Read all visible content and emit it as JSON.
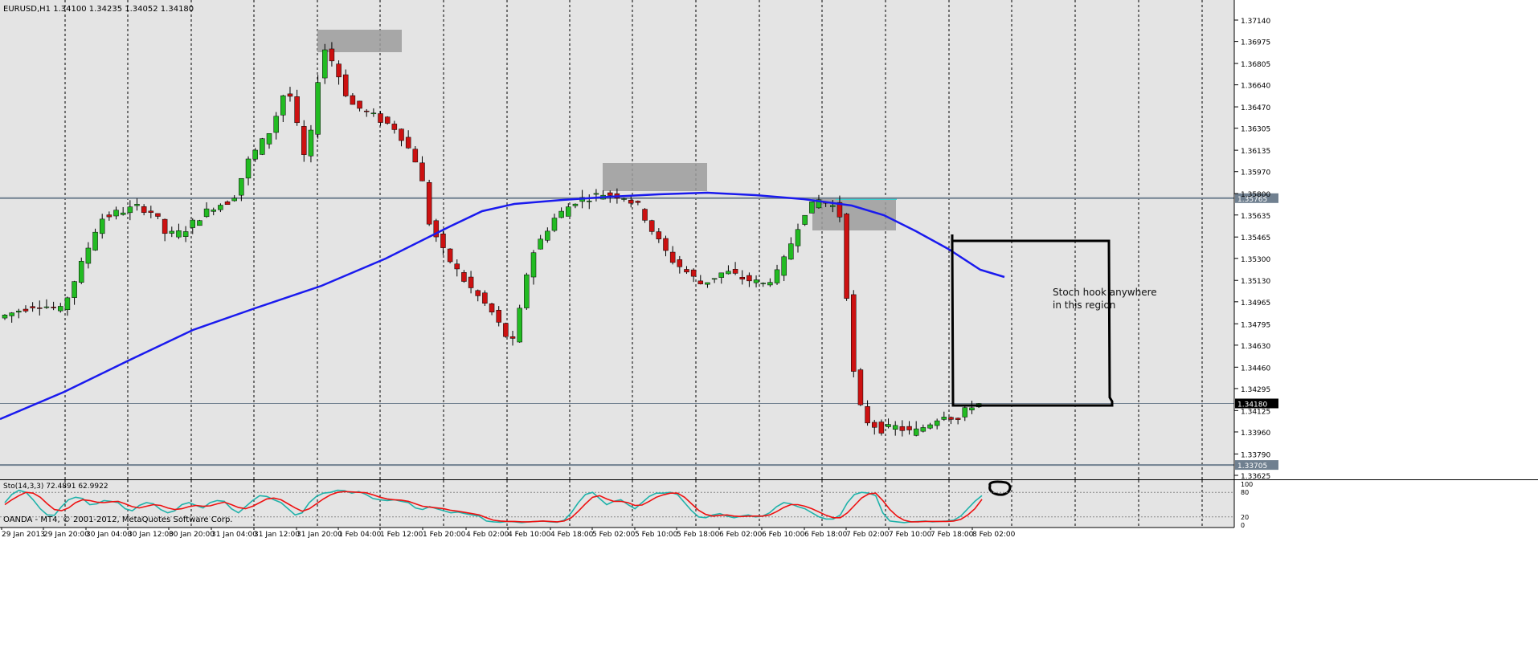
{
  "header": {
    "symbol": "EURUSD,H1",
    "ohlc": "1.34100 1.34235 1.34052 1.34180"
  },
  "footer": {
    "copyright": "OANDA - MT4, © 2001-2012, MetaQuotes Software Corp."
  },
  "annotation": {
    "line1": "Stoch hook anywhere",
    "line2": "in this region"
  },
  "colors": {
    "background": "#e4e4e4",
    "bull": "#22bb22",
    "bear": "#cc1111",
    "ma": "#1a1aee",
    "stoch_main": "#20b2aa",
    "stoch_signal": "#ee1111",
    "zone": "#9c9c9c",
    "hline": "#708090"
  },
  "chart_data": {
    "type": "candlestick",
    "price_axis": {
      "range": [
        1.33625,
        1.3714
      ],
      "tick_labels": [
        "1.37140",
        "1.36975",
        "1.36805",
        "1.36640",
        "1.36470",
        "1.36305",
        "1.36135",
        "1.35970",
        "1.35800",
        "1.35635",
        "1.35465",
        "1.35300",
        "1.35130",
        "1.34965",
        "1.34795",
        "1.34630",
        "1.34460",
        "1.34295",
        "1.34125",
        "1.33960",
        "1.33790",
        "1.33625"
      ],
      "markers": [
        {
          "label": "1.35765",
          "value": 1.35765
        },
        {
          "label": "1.34180",
          "value": 1.3418
        },
        {
          "label": "1.33705",
          "value": 1.33705
        }
      ]
    },
    "time_labels": [
      "29 Jan 2013",
      "29 Jan 20:00",
      "30 Jan 04:00",
      "30 Jan 12:00",
      "30 Jan 20:00",
      "31 Jan 04:00",
      "31 Jan 12:00",
      "31 Jan 20:00",
      "1 Feb 04:00",
      "1 Feb 12:00",
      "1 Feb 20:00",
      "4 Feb 02:00",
      "4 Feb 10:00",
      "4 Feb 18:00",
      "5 Feb 02:00",
      "5 Feb 10:00",
      "5 Feb 18:00",
      "6 Feb 02:00",
      "6 Feb 10:00",
      "6 Feb 18:00",
      "7 Feb 02:00",
      "7 Feb 10:00",
      "7 Feb 18:00",
      "8 Feb 02:00"
    ],
    "horizontal_lines": [
      1.35765,
      1.3418,
      1.33705
    ],
    "indicator": {
      "label": "Sto(14,3,3) 72.4891 62.9922",
      "range": [
        0,
        100
      ],
      "levels": [
        80,
        20
      ],
      "tick_labels": [
        "100",
        "80",
        "20",
        "0"
      ],
      "main": [
        55,
        75,
        85,
        80,
        62,
        40,
        25,
        24,
        45,
        62,
        68,
        65,
        50,
        52,
        60,
        58,
        55,
        40,
        35,
        48,
        55,
        52,
        38,
        30,
        35,
        50,
        55,
        48,
        42,
        55,
        60,
        58,
        40,
        30,
        45,
        60,
        72,
        70,
        62,
        55,
        40,
        25,
        30,
        55,
        70,
        78,
        80,
        85,
        84,
        78,
        82,
        75,
        65,
        62,
        60,
        62,
        58,
        55,
        42,
        38,
        45,
        40,
        35,
        30,
        32,
        28,
        25,
        22,
        10,
        8,
        7,
        9,
        8,
        6,
        8,
        9,
        10,
        8,
        7,
        12,
        30,
        55,
        75,
        80,
        65,
        50,
        58,
        62,
        50,
        40,
        55,
        70,
        78,
        78,
        80,
        75,
        55,
        35,
        20,
        18,
        25,
        28,
        22,
        18,
        22,
        25,
        20,
        22,
        30,
        45,
        55,
        52,
        45,
        40,
        30,
        20,
        15,
        15,
        25,
        55,
        75,
        80,
        78,
        72,
        30,
        10,
        8,
        6,
        8,
        9,
        10,
        8,
        9,
        10,
        12,
        22,
        40,
        58,
        72
      ],
      "signal": [
        50,
        62,
        72,
        80,
        78,
        68,
        52,
        38,
        35,
        42,
        55,
        62,
        60,
        56,
        55,
        57,
        58,
        52,
        45,
        42,
        46,
        50,
        48,
        42,
        38,
        40,
        45,
        48,
        46,
        47,
        52,
        56,
        50,
        43,
        40,
        46,
        55,
        64,
        66,
        62,
        52,
        42,
        34,
        40,
        52,
        64,
        74,
        80,
        82,
        81,
        80,
        79,
        74,
        68,
        64,
        62,
        61,
        58,
        52,
        46,
        44,
        42,
        40,
        36,
        34,
        31,
        28,
        25,
        18,
        12,
        10,
        9,
        9,
        8,
        8,
        9,
        10,
        9,
        8,
        10,
        18,
        34,
        52,
        68,
        72,
        64,
        58,
        58,
        55,
        48,
        49,
        58,
        68,
        74,
        78,
        78,
        68,
        52,
        36,
        26,
        22,
        24,
        25,
        22,
        21,
        22,
        22,
        22,
        25,
        33,
        43,
        50,
        50,
        46,
        40,
        32,
        24,
        18,
        18,
        30,
        48,
        66,
        76,
        78,
        60,
        38,
        22,
        12,
        8,
        8,
        9,
        9,
        9,
        9,
        10,
        14,
        25,
        40,
        63
      ]
    }
  }
}
